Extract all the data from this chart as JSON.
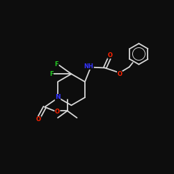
{
  "background_color": "#0d0d0d",
  "bond_color": "#d8d8d8",
  "atom_colors": {
    "F": "#22cc22",
    "N": "#3333ff",
    "O": "#ff2200",
    "C": "#d8d8d8",
    "H": "#d8d8d8"
  },
  "figsize": [
    2.5,
    2.5
  ],
  "dpi": 100,
  "lw": 1.3
}
